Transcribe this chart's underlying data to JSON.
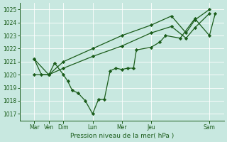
{
  "bg_color": "#c8e8e0",
  "line_color": "#1a5c1a",
  "xlabel": "Pression niveau de la mer( hPa )",
  "xlim": [
    0.0,
    7.0
  ],
  "ylim": [
    1016.5,
    1025.5
  ],
  "yticks": [
    1017,
    1018,
    1019,
    1020,
    1021,
    1022,
    1023,
    1024,
    1025
  ],
  "xtick_positions": [
    0.5,
    1.0,
    1.5,
    2.5,
    3.5,
    4.5,
    6.5
  ],
  "xtick_labels": [
    "Mar",
    "Ven",
    "Dim",
    "Lun",
    "Mer",
    "Jeu",
    "Sam"
  ],
  "line1_x": [
    0.5,
    1.0,
    1.5,
    2.5,
    3.5,
    4.5,
    5.2,
    5.7,
    6.0,
    6.5
  ],
  "line1_y": [
    1021.2,
    1020.0,
    1021.0,
    1022.0,
    1023.0,
    1023.8,
    1024.5,
    1023.2,
    1024.2,
    1025.0
  ],
  "line2_x": [
    0.5,
    1.0,
    1.5,
    2.5,
    3.5,
    4.5,
    5.2,
    5.7,
    6.0,
    6.5
  ],
  "line2_y": [
    1020.0,
    1020.0,
    1020.5,
    1021.4,
    1022.2,
    1023.2,
    1023.7,
    1022.8,
    1023.6,
    1024.7
  ],
  "line3_x": [
    0.5,
    0.75,
    1.0,
    1.2,
    1.5,
    1.65,
    1.8,
    2.0,
    2.25,
    2.5,
    2.7,
    2.9,
    3.1,
    3.3,
    3.5,
    3.7,
    3.9,
    4.0,
    4.5,
    4.8,
    5.0,
    5.5,
    6.0,
    6.5,
    6.7
  ],
  "line3_y": [
    1021.2,
    1020.0,
    1020.0,
    1020.9,
    1020.0,
    1019.5,
    1018.8,
    1018.6,
    1018.0,
    1017.0,
    1018.1,
    1018.1,
    1020.3,
    1020.5,
    1020.4,
    1020.5,
    1020.5,
    1021.9,
    1022.1,
    1022.5,
    1023.0,
    1022.8,
    1024.3,
    1023.0,
    1024.7
  ]
}
